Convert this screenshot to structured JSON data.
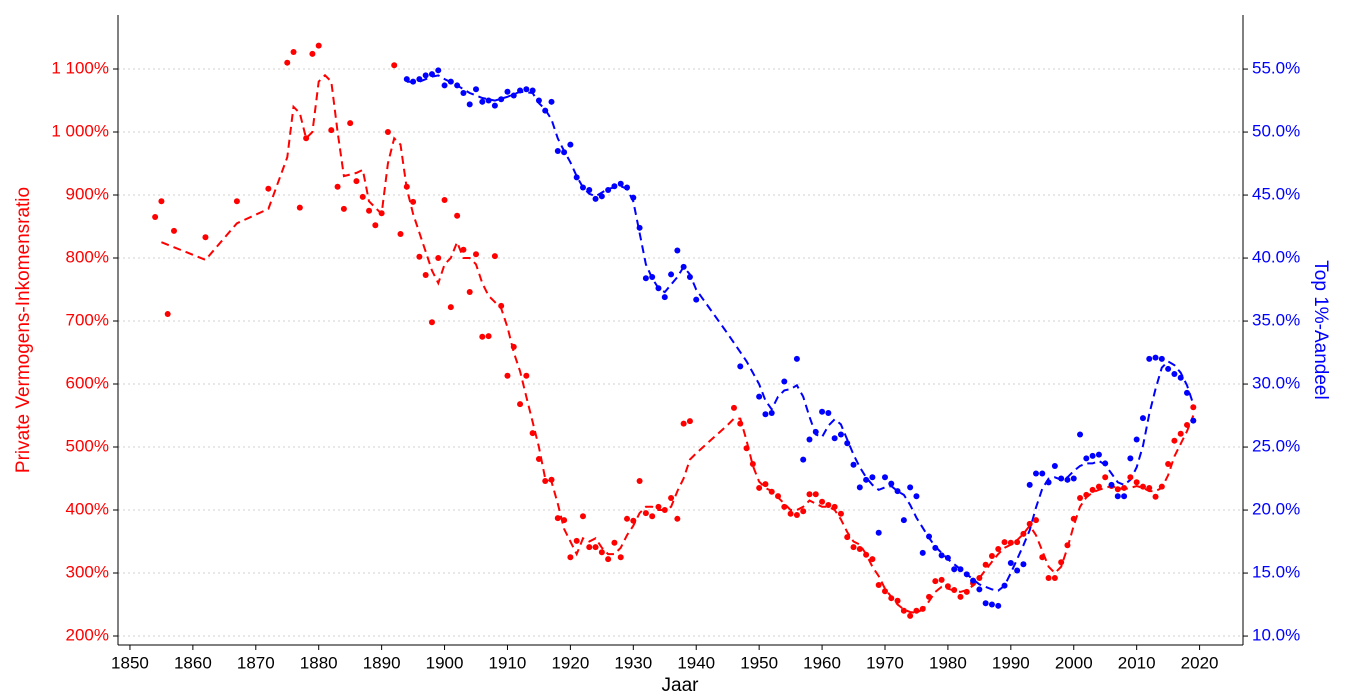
{
  "chart_data": {
    "type": "scatter",
    "xlabel": "Jaar",
    "ylabel": "Private Vermogens-Inkomensratio",
    "y2label": "Top 1%-Aandeel",
    "ycolor": "#ff0000",
    "y2color": "#0000ff",
    "grid": true,
    "xlim": [
      1848.1,
      2026.9
    ],
    "ylim": [
      185.7,
      1185.7
    ],
    "y2lim": [
      9.29,
      59.29
    ],
    "xticks": [
      1850,
      1860,
      1870,
      1880,
      1890,
      1900,
      1910,
      1920,
      1930,
      1940,
      1950,
      1960,
      1970,
      1980,
      1990,
      2000,
      2010,
      2020
    ],
    "yticks": [
      {
        "value": 200,
        "label": "200%"
      },
      {
        "value": 300,
        "label": "300%"
      },
      {
        "value": 400,
        "label": "400%"
      },
      {
        "value": 500,
        "label": "500%"
      },
      {
        "value": 600,
        "label": "600%"
      },
      {
        "value": 700,
        "label": "700%"
      },
      {
        "value": 800,
        "label": "800%"
      },
      {
        "value": 900,
        "label": "900%"
      },
      {
        "value": 1000,
        "label": "1 000%"
      },
      {
        "value": 1100,
        "label": "1 100%"
      }
    ],
    "y2ticks": [
      {
        "value": 10,
        "label": "10.0%"
      },
      {
        "value": 15,
        "label": "15.0%"
      },
      {
        "value": 20,
        "label": "20.0%"
      },
      {
        "value": 25,
        "label": "25.0%"
      },
      {
        "value": 30,
        "label": "30.0%"
      },
      {
        "value": 35,
        "label": "35.0%"
      },
      {
        "value": 40,
        "label": "40.0%"
      },
      {
        "value": 45,
        "label": "45.0%"
      },
      {
        "value": 50,
        "label": "50.0%"
      },
      {
        "value": 55,
        "label": "55.0%"
      }
    ],
    "series": [
      {
        "mode": "markers",
        "axis": "y",
        "color": "#ff0000",
        "x": [
          1854,
          1855,
          1856,
          1857,
          1862,
          1867,
          1872,
          1875,
          1876,
          1877,
          1878,
          1879,
          1880,
          1882,
          1883,
          1884,
          1885,
          1886,
          1887,
          1888,
          1889,
          1890,
          1891,
          1892,
          1893,
          1894,
          1895,
          1896,
          1897,
          1898,
          1899,
          1900,
          1901,
          1902,
          1903,
          1904,
          1905,
          1906,
          1907,
          1908,
          1909,
          1910,
          1911,
          1912,
          1913,
          1914,
          1915,
          1916,
          1917,
          1918,
          1919,
          1920,
          1921,
          1922,
          1923,
          1924,
          1925,
          1926,
          1927,
          1928,
          1929,
          1930,
          1931,
          1932,
          1933,
          1934,
          1935,
          1936,
          1937,
          1938,
          1939,
          1946,
          1947,
          1948,
          1949,
          1950,
          1951,
          1952,
          1953,
          1954,
          1955,
          1956,
          1957,
          1958,
          1959,
          1960,
          1961,
          1962,
          1963,
          1964,
          1965,
          1966,
          1967,
          1968,
          1969,
          1970,
          1971,
          1972,
          1973,
          1974,
          1975,
          1976,
          1977,
          1978,
          1979,
          1980,
          1981,
          1982,
          1983,
          1984,
          1985,
          1986,
          1987,
          1988,
          1989,
          1990,
          1991,
          1992,
          1993,
          1994,
          1995,
          1996,
          1997,
          1998,
          1999,
          2000,
          2001,
          2002,
          2003,
          2004,
          2005,
          2006,
          2007,
          2008,
          2009,
          2010,
          2011,
          2012,
          2013,
          2014,
          2015,
          2016,
          2017,
          2018,
          2019
        ],
        "values": [
          865,
          890,
          711,
          843,
          833,
          890,
          910,
          1110,
          1127,
          880,
          990,
          1124,
          1137,
          1003,
          913,
          878,
          1014,
          922,
          897,
          875,
          852,
          871,
          1000,
          1106,
          838,
          913,
          889,
          802,
          773,
          698,
          800,
          892,
          722,
          867,
          813,
          746,
          806,
          675,
          676,
          803,
          724,
          613,
          659,
          568,
          613,
          522,
          481,
          446,
          448,
          387,
          384,
          325,
          351,
          390,
          341,
          341,
          333,
          322,
          348,
          325,
          386,
          383,
          446,
          395,
          390,
          405,
          400,
          419,
          386,
          537,
          541,
          562,
          537,
          498,
          473,
          435,
          441,
          429,
          422,
          405,
          394,
          392,
          398,
          425,
          425,
          413,
          408,
          405,
          394,
          357,
          341,
          338,
          329,
          322,
          281,
          271,
          260,
          256,
          240,
          232,
          240,
          243,
          262,
          287,
          289,
          279,
          273,
          262,
          270,
          284,
          292,
          313,
          327,
          338,
          349,
          348,
          349,
          362,
          378,
          384,
          325,
          292,
          292,
          317,
          344,
          386,
          419,
          424,
          432,
          437,
          452,
          438,
          433,
          435,
          452,
          444,
          437,
          435,
          421,
          437,
          473,
          510,
          521,
          535,
          563
        ]
      },
      {
        "mode": "dashed-line",
        "axis": "y",
        "color": "#ff0000",
        "x": [
          1855,
          1860,
          1862,
          1867,
          1872,
          1875,
          1876,
          1877,
          1878,
          1879,
          1880,
          1881,
          1882,
          1883,
          1884,
          1886,
          1887,
          1888,
          1889,
          1890,
          1891,
          1892,
          1893,
          1894,
          1895,
          1896,
          1897,
          1898,
          1899,
          1900,
          1901,
          1902,
          1903,
          1904,
          1905,
          1906,
          1907,
          1908,
          1909,
          1910,
          1911,
          1912,
          1913,
          1914,
          1915,
          1916,
          1917,
          1918,
          1919,
          1920,
          1921,
          1922,
          1923,
          1924,
          1925,
          1926,
          1927,
          1928,
          1929,
          1930,
          1931,
          1932,
          1933,
          1934,
          1935,
          1936,
          1937,
          1938,
          1939,
          1940,
          1945,
          1946,
          1947,
          1948,
          1949,
          1950,
          1951,
          1952,
          1953,
          1954,
          1955,
          1956,
          1957,
          1958,
          1959,
          1960,
          1961,
          1962,
          1963,
          1964,
          1965,
          1966,
          1967,
          1968,
          1969,
          1970,
          1971,
          1972,
          1973,
          1974,
          1975,
          1976,
          1977,
          1978,
          1979,
          1980,
          1981,
          1982,
          1983,
          1984,
          1985,
          1986,
          1987,
          1988,
          1989,
          1990,
          1991,
          1992,
          1993,
          1994,
          1995,
          1996,
          1997,
          1998,
          1999,
          2000,
          2001,
          2002,
          2003,
          2004,
          2005,
          2006,
          2007,
          2008,
          2009,
          2010,
          2011,
          2012,
          2013,
          2014,
          2015,
          2016,
          2017,
          2018,
          2019
        ],
        "values": [
          825,
          805,
          797,
          855,
          878,
          960,
          1040,
          1030,
          990,
          1000,
          1080,
          1090,
          1080,
          1000,
          930,
          935,
          940,
          890,
          880,
          870,
          950,
          990,
          980,
          910,
          870,
          840,
          810,
          780,
          760,
          790,
          800,
          825,
          800,
          800,
          790,
          760,
          740,
          730,
          720,
          690,
          650,
          620,
          580,
          540,
          500,
          450,
          445,
          410,
          370,
          350,
          330,
          355,
          350,
          355,
          340,
          330,
          330,
          340,
          360,
          375,
          395,
          405,
          405,
          400,
          400,
          405,
          430,
          450,
          480,
          490,
          535,
          545,
          545,
          510,
          470,
          445,
          435,
          430,
          420,
          410,
          400,
          400,
          405,
          415,
          410,
          405,
          405,
          400,
          385,
          365,
          350,
          345,
          330,
          310,
          295,
          275,
          262,
          250,
          242,
          238,
          237,
          242,
          255,
          270,
          278,
          275,
          272,
          270,
          273,
          280,
          292,
          305,
          318,
          330,
          340,
          345,
          352,
          362,
          375,
          360,
          335,
          310,
          300,
          310,
          340,
          375,
          405,
          420,
          428,
          432,
          435,
          438,
          435,
          433,
          435,
          438,
          435,
          430,
          430,
          435,
          455,
          485,
          505,
          525,
          550
        ]
      },
      {
        "mode": "markers",
        "axis": "y2",
        "color": "#0000ff",
        "x": [
          1894,
          1895,
          1896,
          1897,
          1898,
          1899,
          1900,
          1901,
          1902,
          1903,
          1904,
          1905,
          1906,
          1907,
          1908,
          1909,
          1910,
          1911,
          1912,
          1913,
          1914,
          1915,
          1916,
          1917,
          1918,
          1919,
          1920,
          1921,
          1922,
          1923,
          1924,
          1925,
          1926,
          1927,
          1928,
          1929,
          1930,
          1931,
          1932,
          1933,
          1934,
          1935,
          1936,
          1937,
          1938,
          1939,
          1940,
          1947,
          1950,
          1951,
          1952,
          1954,
          1956,
          1957,
          1958,
          1959,
          1960,
          1961,
          1962,
          1963,
          1964,
          1965,
          1966,
          1967,
          1968,
          1969,
          1970,
          1971,
          1972,
          1973,
          1974,
          1975,
          1976,
          1977,
          1978,
          1979,
          1980,
          1981,
          1982,
          1983,
          1984,
          1985,
          1986,
          1987,
          1988,
          1989,
          1990,
          1991,
          1992,
          1993,
          1994,
          1995,
          1996,
          1997,
          1998,
          1999,
          2000,
          2001,
          2002,
          2003,
          2004,
          2005,
          2006,
          2007,
          2008,
          2009,
          2010,
          2011,
          2012,
          2013,
          2014,
          2015,
          2016,
          2017,
          2018,
          2019
        ],
        "values": [
          54.2,
          54.0,
          54.2,
          54.5,
          54.6,
          54.9,
          53.7,
          54.0,
          53.7,
          53.1,
          52.2,
          53.4,
          52.4,
          52.5,
          52.1,
          52.6,
          53.2,
          52.9,
          53.3,
          53.4,
          53.3,
          52.5,
          51.7,
          52.4,
          48.5,
          48.4,
          49.0,
          46.4,
          45.6,
          45.4,
          44.7,
          44.9,
          45.4,
          45.7,
          45.9,
          45.6,
          44.8,
          42.4,
          38.4,
          38.5,
          37.6,
          36.9,
          38.7,
          40.6,
          39.3,
          38.5,
          36.7,
          31.4,
          29.0,
          27.6,
          27.7,
          30.2,
          32.0,
          24.0,
          25.6,
          26.2,
          27.8,
          27.7,
          25.7,
          26.0,
          25.3,
          23.6,
          21.8,
          22.4,
          22.6,
          18.2,
          22.6,
          22.1,
          21.5,
          19.2,
          21.8,
          21.1,
          16.6,
          17.9,
          17.0,
          16.4,
          16.2,
          15.3,
          15.3,
          14.9,
          14.4,
          13.7,
          12.6,
          12.5,
          12.4,
          14.0,
          15.8,
          15.2,
          15.7,
          22.0,
          22.9,
          22.9,
          22.2,
          23.5,
          22.5,
          22.4,
          22.5,
          26.0,
          24.1,
          24.3,
          24.4,
          23.7,
          22.0,
          21.1,
          21.1,
          24.1,
          25.6,
          27.3,
          32.0,
          32.1,
          32.0,
          31.2,
          30.8,
          30.5,
          29.3,
          27.1
        ]
      },
      {
        "mode": "dashed-line",
        "axis": "y2",
        "color": "#0000ff",
        "x": [
          1894,
          1896,
          1898,
          1899,
          1900,
          1902,
          1904,
          1906,
          1908,
          1910,
          1912,
          1914,
          1915,
          1916,
          1917,
          1918,
          1919,
          1920,
          1921,
          1922,
          1923,
          1924,
          1926,
          1928,
          1929,
          1930,
          1931,
          1932,
          1933,
          1934,
          1935,
          1936,
          1937,
          1938,
          1939,
          1940,
          1945,
          1948,
          1950,
          1951,
          1952,
          1953,
          1954,
          1955,
          1956,
          1957,
          1958,
          1959,
          1960,
          1961,
          1962,
          1963,
          1964,
          1965,
          1966,
          1967,
          1968,
          1969,
          1970,
          1971,
          1972,
          1973,
          1974,
          1975,
          1976,
          1977,
          1978,
          1979,
          1980,
          1981,
          1982,
          1983,
          1984,
          1985,
          1986,
          1987,
          1988,
          1989,
          1990,
          1991,
          1992,
          1993,
          1994,
          1995,
          1996,
          1997,
          1998,
          1999,
          2000,
          2001,
          2002,
          2003,
          2004,
          2005,
          2006,
          2007,
          2008,
          2009,
          2010,
          2011,
          2012,
          2013,
          2014,
          2015,
          2016,
          2017,
          2018,
          2019
        ],
        "values": [
          54.0,
          54.0,
          54.4,
          54.5,
          54.2,
          53.7,
          53.1,
          52.7,
          52.5,
          52.8,
          53.2,
          53.1,
          52.3,
          51.8,
          51.0,
          49.5,
          48.5,
          47.6,
          46.5,
          45.6,
          45.1,
          44.9,
          45.5,
          45.7,
          45.5,
          44.5,
          42.0,
          39.5,
          38.4,
          37.6,
          37.3,
          37.9,
          38.5,
          39.3,
          38.7,
          37.5,
          34.0,
          31.8,
          30.0,
          28.7,
          28.0,
          29.0,
          29.5,
          29.6,
          29.9,
          29.0,
          27.4,
          26.0,
          25.8,
          26.7,
          27.2,
          26.8,
          25.6,
          24.4,
          23.4,
          22.6,
          22.0,
          21.6,
          21.8,
          21.9,
          21.5,
          21.2,
          20.4,
          19.4,
          18.6,
          17.8,
          17.1,
          16.6,
          16.1,
          15.7,
          15.3,
          14.9,
          14.5,
          14.1,
          13.9,
          13.7,
          13.6,
          14.0,
          15.0,
          16.1,
          17.2,
          18.4,
          20.2,
          21.7,
          22.5,
          22.6,
          22.4,
          22.6,
          23.1,
          23.5,
          23.7,
          23.7,
          23.9,
          23.6,
          22.9,
          22.2,
          22.0,
          22.4,
          23.4,
          25.1,
          27.6,
          29.6,
          31.3,
          31.8,
          31.5,
          30.9,
          29.9,
          28.4
        ]
      }
    ]
  }
}
